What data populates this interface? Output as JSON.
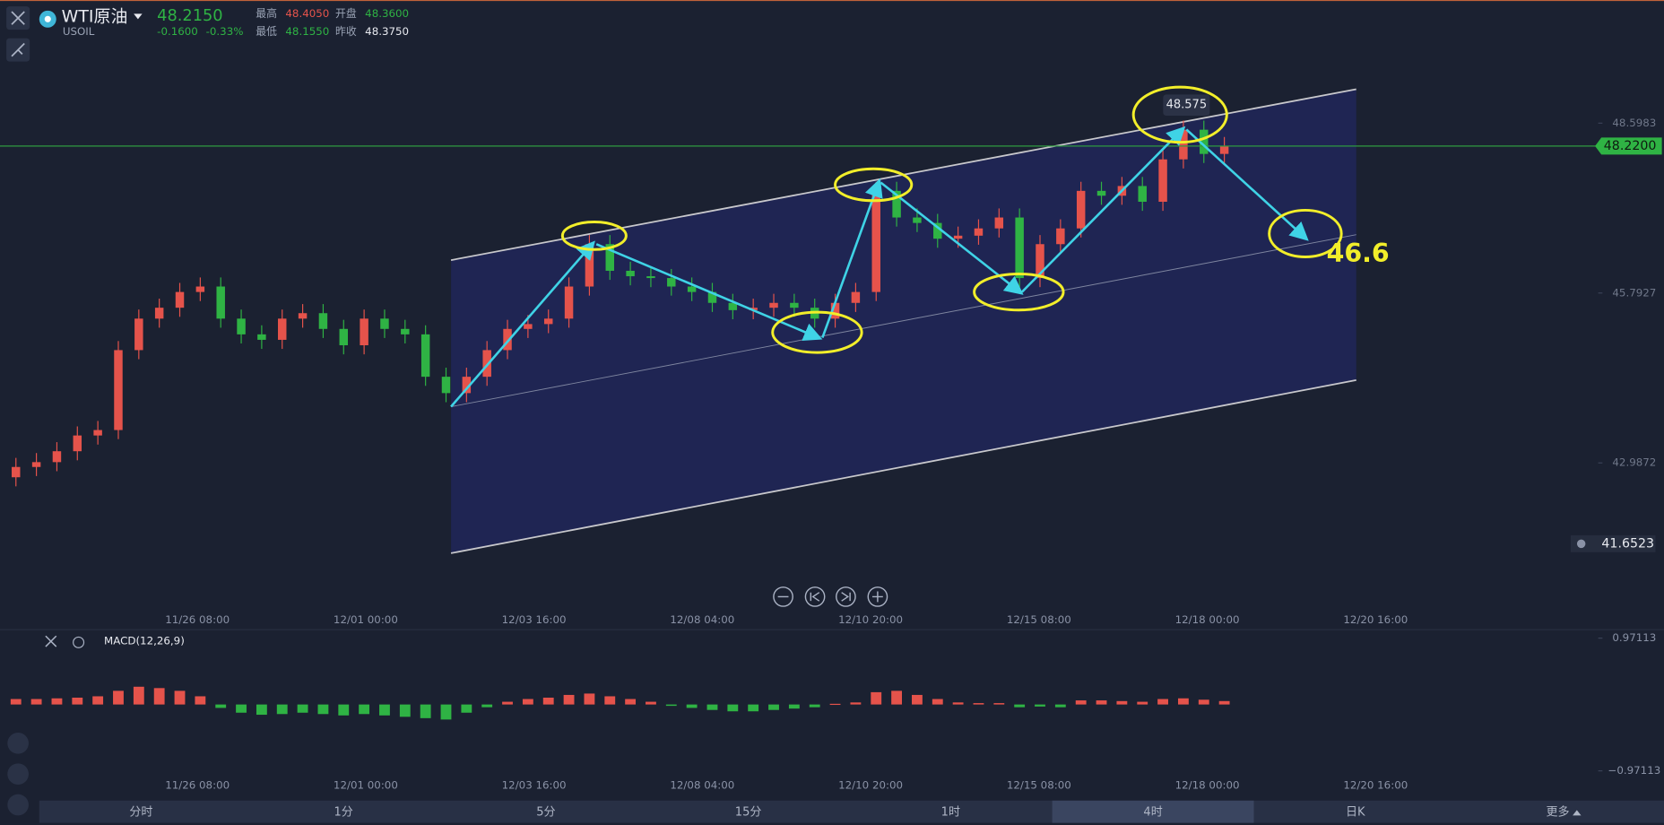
{
  "header": {
    "symbol": "WTI原油",
    "code": "USOIL",
    "price": "48.2150",
    "change": "-0.1600",
    "change_pct": "-0.33%",
    "high_label": "最高",
    "high": "48.4050",
    "open_label": "开盘",
    "open": "48.3600",
    "low_label": "最低",
    "low": "48.1550",
    "prev_label": "昨收",
    "prev": "48.3750"
  },
  "chart_data": {
    "type": "candlestick",
    "ylim": [
      40.637,
      50.632
    ],
    "yticks": [
      48.5983,
      45.7927,
      42.9872
    ],
    "current_price": {
      "value": 48.22,
      "label": "48.2200"
    },
    "alert_price": 41.6523,
    "x_labels": [
      "11/26 08:00",
      "12/01 00:00",
      "12/03 16:00",
      "12/08 04:00",
      "12/10 20:00",
      "12/15 08:00",
      "12/18 00:00",
      "12/20 16:00"
    ],
    "annotations": [
      "48.575",
      "46.6"
    ],
    "candles": {
      "open": [
        42.75,
        42.92,
        43.0,
        43.18,
        43.44,
        43.53,
        44.85,
        45.37,
        45.55,
        45.81,
        45.9,
        45.37,
        45.11,
        45.02,
        45.37,
        45.46,
        45.2,
        44.93,
        45.37,
        45.2,
        45.11,
        44.41,
        44.14,
        44.41,
        44.85,
        45.2,
        45.28,
        45.37,
        45.9,
        46.6,
        46.16,
        46.07,
        46.04,
        45.9,
        45.81,
        45.63,
        45.51,
        45.55,
        45.63,
        45.55,
        45.37,
        45.63,
        45.81,
        47.48,
        47.04,
        46.95,
        46.69,
        46.74,
        46.86,
        47.04,
        46.04,
        46.6,
        46.86,
        47.48,
        47.4,
        47.56,
        47.3,
        48.0,
        48.49,
        48.09
      ],
      "high": [
        43.07,
        43.15,
        43.33,
        43.59,
        43.68,
        45.0,
        45.52,
        45.7,
        45.96,
        46.05,
        46.05,
        45.52,
        45.26,
        45.52,
        45.61,
        45.61,
        45.35,
        45.52,
        45.52,
        45.35,
        45.26,
        44.56,
        44.56,
        45.0,
        45.35,
        45.43,
        45.52,
        46.05,
        46.75,
        46.75,
        46.31,
        46.22,
        46.19,
        46.05,
        45.96,
        45.78,
        45.7,
        45.78,
        45.78,
        45.7,
        45.78,
        45.96,
        47.63,
        47.63,
        47.19,
        47.1,
        46.89,
        47.01,
        47.19,
        47.19,
        46.75,
        47.01,
        47.63,
        47.63,
        47.71,
        47.71,
        48.15,
        48.64,
        48.64,
        48.37
      ],
      "low": [
        42.6,
        42.77,
        42.85,
        43.03,
        43.29,
        43.38,
        44.7,
        45.22,
        45.4,
        45.66,
        45.22,
        44.96,
        44.87,
        44.87,
        45.22,
        45.05,
        44.78,
        44.78,
        45.05,
        44.96,
        44.26,
        43.99,
        43.99,
        44.26,
        44.7,
        45.05,
        45.13,
        45.22,
        45.75,
        46.01,
        45.92,
        45.89,
        45.75,
        45.66,
        45.48,
        45.36,
        45.36,
        45.4,
        45.4,
        45.22,
        45.22,
        45.48,
        45.66,
        46.89,
        46.8,
        46.54,
        46.54,
        46.59,
        46.71,
        45.89,
        45.89,
        46.45,
        46.71,
        47.25,
        47.25,
        47.15,
        47.15,
        47.85,
        47.94,
        47.94
      ],
      "close": [
        42.92,
        43.0,
        43.18,
        43.44,
        43.53,
        44.85,
        45.37,
        45.55,
        45.81,
        45.9,
        45.37,
        45.11,
        45.02,
        45.37,
        45.46,
        45.2,
        44.93,
        45.37,
        45.2,
        45.11,
        44.41,
        44.14,
        44.41,
        44.85,
        45.2,
        45.28,
        45.37,
        45.9,
        46.6,
        46.16,
        46.07,
        46.04,
        45.9,
        45.81,
        45.63,
        45.51,
        45.55,
        45.63,
        45.55,
        45.37,
        45.63,
        45.81,
        47.48,
        47.04,
        46.95,
        46.69,
        46.74,
        46.86,
        47.04,
        46.04,
        46.6,
        46.86,
        47.48,
        47.4,
        47.56,
        47.3,
        48.0,
        48.49,
        48.09,
        48.22
      ]
    },
    "up_color": "#e5534b",
    "down_color": "#2fb344"
  },
  "macd": {
    "title": "MACD(12,26,9)",
    "ylim": [
      -0.97113,
      0.97113
    ],
    "yticks": [
      0.97113,
      {
        "value": -0.97113,
        "label": "−0.97113"
      }
    ],
    "histogram": [
      0.08,
      0.08,
      0.09,
      0.1,
      0.12,
      0.2,
      0.26,
      0.24,
      0.2,
      0.12,
      -0.05,
      -0.12,
      -0.15,
      -0.14,
      -0.12,
      -0.14,
      -0.16,
      -0.14,
      -0.16,
      -0.18,
      -0.2,
      -0.22,
      -0.12,
      -0.04,
      0.04,
      0.08,
      0.1,
      0.14,
      0.16,
      0.12,
      0.08,
      0.04,
      -0.02,
      -0.05,
      -0.08,
      -0.1,
      -0.1,
      -0.08,
      -0.06,
      -0.04,
      0.01,
      0.03,
      0.18,
      0.2,
      0.14,
      0.08,
      0.03,
      0.02,
      0.02,
      -0.04,
      -0.03,
      -0.04,
      0.06,
      0.06,
      0.05,
      0.04,
      0.08,
      0.09,
      0.07,
      0.05
    ]
  },
  "timeframes": [
    "分时",
    "1分",
    "5分",
    "15分",
    "1时",
    "4时",
    "日K",
    "更多"
  ]
}
